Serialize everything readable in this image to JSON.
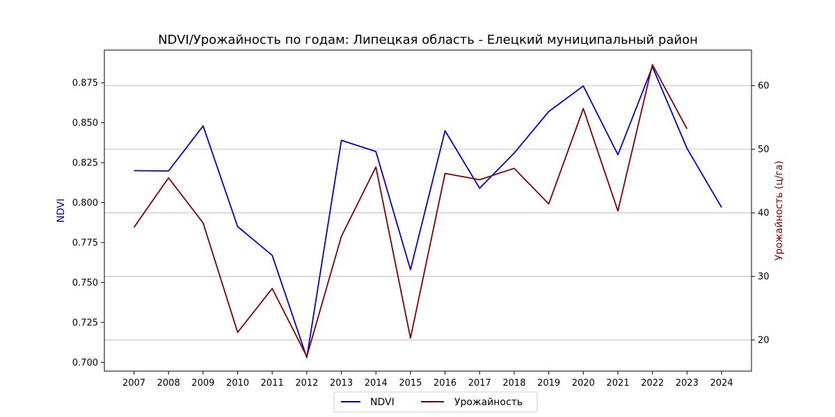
{
  "chart_data": {
    "type": "line",
    "title": "NDVI/Урожайность по годам: Липецкая область - Елецкий муниципальный район",
    "categories": [
      "2007",
      "2008",
      "2009",
      "2010",
      "2011",
      "2012",
      "2013",
      "2014",
      "2015",
      "2016",
      "2017",
      "2018",
      "2019",
      "2020",
      "2021",
      "2022",
      "2023",
      "2024"
    ],
    "series": [
      {
        "name": "NDVI",
        "axis": "left",
        "color": "#0000cc",
        "values": [
          0.82,
          0.8198,
          0.848,
          0.785,
          0.767,
          0.703,
          0.839,
          0.832,
          0.758,
          0.845,
          0.809,
          0.831,
          0.857,
          0.873,
          0.83,
          0.885,
          0.834,
          0.797
        ]
      },
      {
        "name": "Урожайность",
        "axis": "right",
        "color": "#800000",
        "values": [
          37.7,
          45.5,
          38.4,
          21.2,
          28.1,
          17.4,
          36.3,
          47.2,
          20.3,
          46.2,
          45.2,
          47.0,
          41.4,
          56.4,
          40.3,
          63.3,
          53.2,
          null
        ]
      }
    ],
    "left_axis": {
      "label": "NDVI",
      "color": "#0000cc",
      "ylim": [
        0.6945,
        0.8955
      ],
      "ticks": [
        "0.700",
        "0.725",
        "0.750",
        "0.775",
        "0.800",
        "0.825",
        "0.850",
        "0.875"
      ]
    },
    "right_axis": {
      "label": "Урожайность (ц/га)",
      "color": "#800000",
      "ylim": [
        15.1,
        65.6
      ],
      "ticks": [
        20,
        30,
        40,
        50,
        60
      ],
      "grid": true
    },
    "legend": {
      "position": "bottom-center",
      "entries": [
        "NDVI",
        "Урожайность"
      ]
    }
  }
}
